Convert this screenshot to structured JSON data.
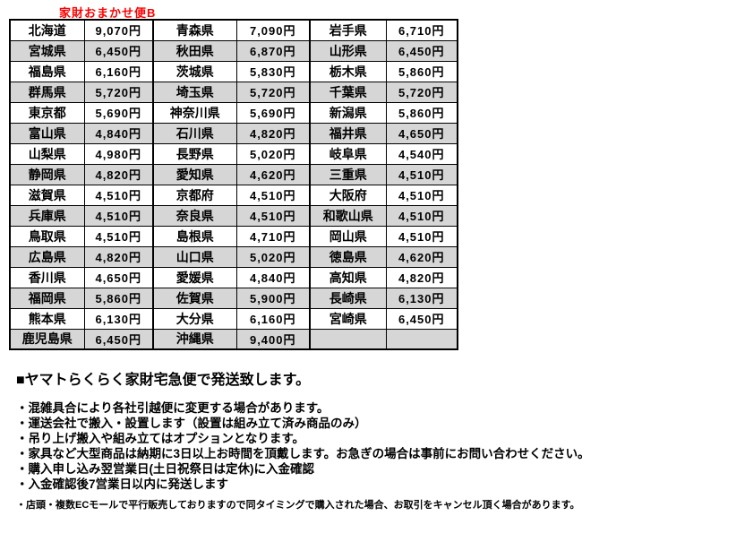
{
  "title": "家財おまかせ便B",
  "colors": {
    "title_red": "#ff0000",
    "row_alt_gray": "#d6d6d6",
    "border_black": "#000000"
  },
  "fee_table": {
    "currency_suffix": "円",
    "rows": [
      [
        "北海道",
        "9,070円",
        "青森県",
        "7,090円",
        "岩手県",
        "6,710円"
      ],
      [
        "宮城県",
        "6,450円",
        "秋田県",
        "6,870円",
        "山形県",
        "6,450円"
      ],
      [
        "福島県",
        "6,160円",
        "茨城県",
        "5,830円",
        "栃木県",
        "5,860円"
      ],
      [
        "群馬県",
        "5,720円",
        "埼玉県",
        "5,720円",
        "千葉県",
        "5,720円"
      ],
      [
        "東京都",
        "5,690円",
        "神奈川県",
        "5,690円",
        "新潟県",
        "5,860円"
      ],
      [
        "富山県",
        "4,840円",
        "石川県",
        "4,820円",
        "福井県",
        "4,650円"
      ],
      [
        "山梨県",
        "4,980円",
        "長野県",
        "5,020円",
        "岐阜県",
        "4,540円"
      ],
      [
        "静岡県",
        "4,820円",
        "愛知県",
        "4,620円",
        "三重県",
        "4,510円"
      ],
      [
        "滋賀県",
        "4,510円",
        "京都府",
        "4,510円",
        "大阪府",
        "4,510円"
      ],
      [
        "兵庫県",
        "4,510円",
        "奈良県",
        "4,510円",
        "和歌山県",
        "4,510円"
      ],
      [
        "鳥取県",
        "4,510円",
        "島根県",
        "4,710円",
        "岡山県",
        "4,510円"
      ],
      [
        "広島県",
        "4,820円",
        "山口県",
        "5,020円",
        "徳島県",
        "4,620円"
      ],
      [
        "香川県",
        "4,650円",
        "愛媛県",
        "4,840円",
        "高知県",
        "4,820円"
      ],
      [
        "福岡県",
        "5,860円",
        "佐賀県",
        "5,900円",
        "長崎県",
        "6,130円"
      ],
      [
        "熊本県",
        "6,130円",
        "大分県",
        "6,160円",
        "宮崎県",
        "6,450円"
      ],
      [
        "鹿児島県",
        "6,450円",
        "沖縄県",
        "9,400円",
        "",
        ""
      ]
    ]
  },
  "notes": {
    "heading": "■ヤマトらくらく家財宅急便で発送致します。",
    "bullets": [
      "・混雑具合により各社引越便に変更する場合があります。",
      "・運送会社で搬入・設置します（設置は組み立て済み商品のみ）",
      "・吊り上げ搬入や組み立てはオプションとなります。",
      "・家具など大型商品は納期に3日以上お時間を頂戴します。お急ぎの場合は事前にお問い合わせください。",
      "・購入申し込み翌営業日(土日祝祭日は定休)に入金確認",
      "・入金確認後7営業日以内に発送します"
    ],
    "footnote": "・店頭・複数ECモールで平行販売しておりますので同タイミングで購入された場合、お取引をキャンセル頂く場合があります。"
  }
}
